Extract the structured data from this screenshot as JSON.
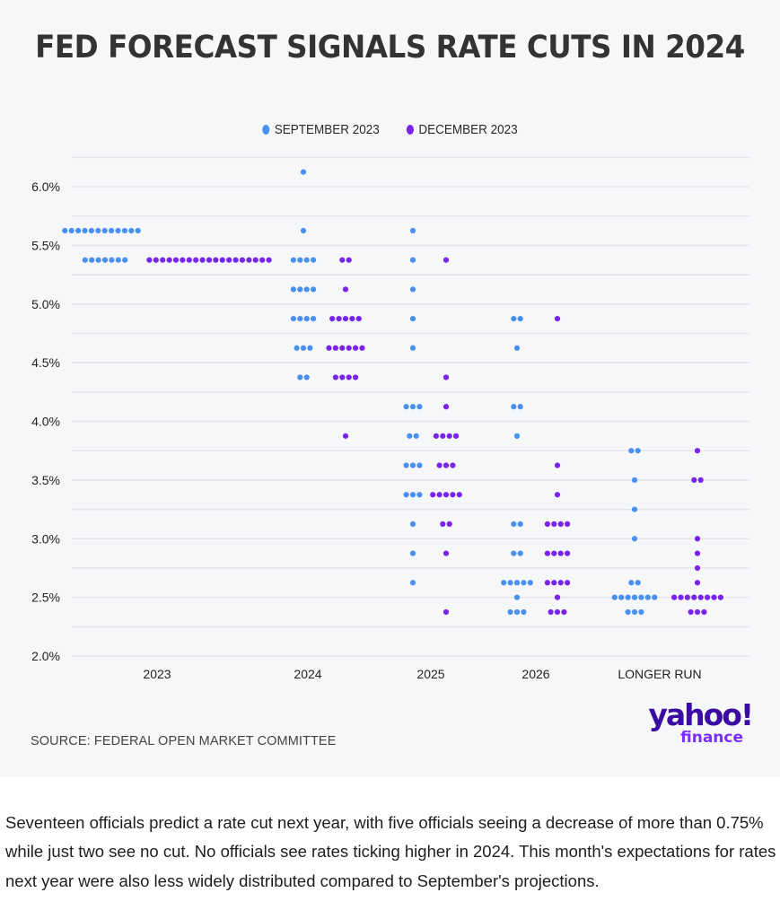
{
  "title": "FED FORECAST SIGNALS RATE CUTS IN 2024",
  "legend": [
    {
      "label": "SEPTEMBER 2023",
      "color": "#4a90f0"
    },
    {
      "label": "DECEMBER 2023",
      "color": "#7a22ee"
    }
  ],
  "source": "SOURCE: FEDERAL OPEN MARKET COMMITTEE",
  "logo": {
    "brand": "yahoo!",
    "sub": "finance"
  },
  "caption": "Seventeen officials predict a rate cut next year, with five officials seeing a decrease of more than 0.75% while just two see no cut. No officials see rates ticking higher in 2024. This month's expectations for rates next year were also less widely distributed compared to September's projections.",
  "chart_data": {
    "type": "scatter",
    "subtype": "dot-plot",
    "title": "FED FORECAST SIGNALS RATE CUTS IN 2024",
    "xlabel": "",
    "ylabel": "",
    "categories": [
      "2023",
      "2024",
      "2025",
      "2026",
      "LONGER RUN"
    ],
    "y_ticks": [
      "2.0%",
      "2.5%",
      "3.0%",
      "3.5%",
      "4.0%",
      "4.5%",
      "5.0%",
      "5.5%",
      "6.0%"
    ],
    "y_tick_values": [
      2.0,
      2.5,
      3.0,
      3.5,
      4.0,
      4.5,
      5.0,
      5.5,
      6.0
    ],
    "ylim": [
      2.0,
      6.25
    ],
    "grid": true,
    "grid_step": 0.25,
    "legend_position": "top-center",
    "series": [
      {
        "name": "SEPTEMBER 2023",
        "color": "#4a90f0",
        "points": {
          "2023": [
            {
              "rate": 5.625,
              "count": 12
            },
            {
              "rate": 5.375,
              "count": 7
            }
          ],
          "2024": [
            {
              "rate": 6.125,
              "count": 1
            },
            {
              "rate": 5.625,
              "count": 1
            },
            {
              "rate": 5.375,
              "count": 4
            },
            {
              "rate": 5.125,
              "count": 4
            },
            {
              "rate": 4.875,
              "count": 4
            },
            {
              "rate": 4.625,
              "count": 3
            },
            {
              "rate": 4.375,
              "count": 2
            }
          ],
          "2025": [
            {
              "rate": 5.625,
              "count": 1
            },
            {
              "rate": 5.375,
              "count": 1
            },
            {
              "rate": 5.125,
              "count": 1
            },
            {
              "rate": 4.875,
              "count": 1
            },
            {
              "rate": 4.625,
              "count": 1
            },
            {
              "rate": 4.125,
              "count": 3
            },
            {
              "rate": 3.875,
              "count": 2
            },
            {
              "rate": 3.625,
              "count": 3
            },
            {
              "rate": 3.375,
              "count": 3
            },
            {
              "rate": 3.125,
              "count": 1
            },
            {
              "rate": 2.875,
              "count": 1
            },
            {
              "rate": 2.625,
              "count": 1
            }
          ],
          "2026": [
            {
              "rate": 4.875,
              "count": 2
            },
            {
              "rate": 4.625,
              "count": 1
            },
            {
              "rate": 4.125,
              "count": 2
            },
            {
              "rate": 3.875,
              "count": 1
            },
            {
              "rate": 3.125,
              "count": 2
            },
            {
              "rate": 2.875,
              "count": 2
            },
            {
              "rate": 2.625,
              "count": 5
            },
            {
              "rate": 2.5,
              "count": 1
            },
            {
              "rate": 2.375,
              "count": 3
            }
          ],
          "LONGER RUN": [
            {
              "rate": 3.75,
              "count": 2
            },
            {
              "rate": 3.5,
              "count": 1
            },
            {
              "rate": 3.25,
              "count": 1
            },
            {
              "rate": 3.0,
              "count": 1
            },
            {
              "rate": 2.625,
              "count": 2
            },
            {
              "rate": 2.5,
              "count": 7
            },
            {
              "rate": 2.375,
              "count": 3
            }
          ]
        }
      },
      {
        "name": "DECEMBER 2023",
        "color": "#7a22ee",
        "points": {
          "2023": [
            {
              "rate": 5.375,
              "count": 19
            }
          ],
          "2024": [
            {
              "rate": 5.375,
              "count": 2
            },
            {
              "rate": 5.125,
              "count": 1
            },
            {
              "rate": 4.875,
              "count": 5
            },
            {
              "rate": 4.625,
              "count": 6
            },
            {
              "rate": 4.375,
              "count": 4
            },
            {
              "rate": 3.875,
              "count": 1
            }
          ],
          "2025": [
            {
              "rate": 5.375,
              "count": 1
            },
            {
              "rate": 4.375,
              "count": 1
            },
            {
              "rate": 4.125,
              "count": 1
            },
            {
              "rate": 3.875,
              "count": 4
            },
            {
              "rate": 3.625,
              "count": 3
            },
            {
              "rate": 3.375,
              "count": 5
            },
            {
              "rate": 3.125,
              "count": 2
            },
            {
              "rate": 2.875,
              "count": 1
            },
            {
              "rate": 2.375,
              "count": 1
            }
          ],
          "2026": [
            {
              "rate": 4.875,
              "count": 1
            },
            {
              "rate": 3.625,
              "count": 1
            },
            {
              "rate": 3.375,
              "count": 1
            },
            {
              "rate": 3.125,
              "count": 4
            },
            {
              "rate": 2.875,
              "count": 4
            },
            {
              "rate": 2.625,
              "count": 4
            },
            {
              "rate": 2.5,
              "count": 1
            },
            {
              "rate": 2.375,
              "count": 3
            }
          ],
          "LONGER RUN": [
            {
              "rate": 3.75,
              "count": 1
            },
            {
              "rate": 3.5,
              "count": 2
            },
            {
              "rate": 3.0,
              "count": 1
            },
            {
              "rate": 2.875,
              "count": 1
            },
            {
              "rate": 2.75,
              "count": 1
            },
            {
              "rate": 2.625,
              "count": 1
            },
            {
              "rate": 2.5,
              "count": 8
            },
            {
              "rate": 2.375,
              "count": 3
            }
          ]
        }
      }
    ]
  }
}
